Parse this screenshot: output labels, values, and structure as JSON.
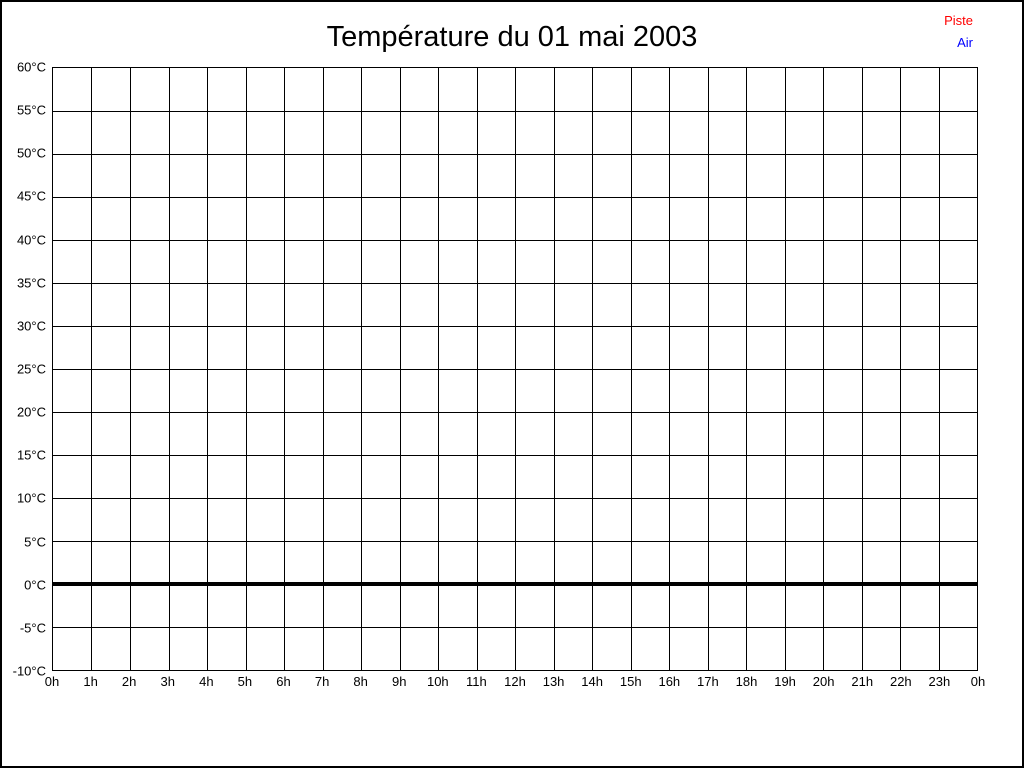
{
  "title": "Température du 01 mai 2003",
  "legend": {
    "items": [
      {
        "label": "Piste",
        "color": "#ff0000"
      },
      {
        "label": "Air",
        "color": "#0000ff"
      }
    ]
  },
  "chart_data": {
    "type": "line",
    "title": "Température du 01 mai 2003",
    "x_axis": {
      "unit": "hour",
      "range": [
        0,
        24
      ],
      "tick_labels": [
        "0h",
        "1h",
        "2h",
        "3h",
        "4h",
        "5h",
        "6h",
        "7h",
        "8h",
        "9h",
        "10h",
        "11h",
        "12h",
        "13h",
        "14h",
        "15h",
        "16h",
        "17h",
        "18h",
        "19h",
        "20h",
        "21h",
        "22h",
        "23h",
        "0h"
      ]
    },
    "y_axis": {
      "unit": "°C",
      "range": [
        -10,
        60
      ],
      "step": 5,
      "tick_labels": [
        "60°C",
        "55°C",
        "50°C",
        "45°C",
        "40°C",
        "35°C",
        "30°C",
        "25°C",
        "20°C",
        "15°C",
        "10°C",
        "5°C",
        "0°C",
        "-5°C",
        "-10°C"
      ]
    },
    "grid": true,
    "legend_position": "top-right",
    "zero_line": {
      "value": 0,
      "color": "#000000",
      "thickness_px": 4
    },
    "series": [
      {
        "name": "Piste",
        "color": "#ff0000",
        "points": []
      },
      {
        "name": "Air",
        "color": "#0000ff",
        "points": []
      }
    ]
  },
  "colors": {
    "background": "#ffffff",
    "frame": "#000000",
    "grid": "#000000",
    "text": "#000000"
  }
}
